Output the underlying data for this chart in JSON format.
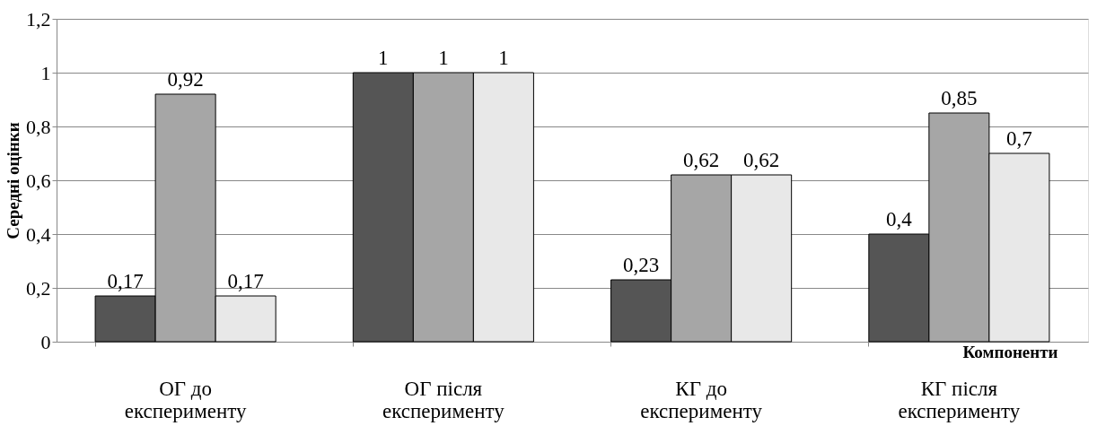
{
  "chart_data": {
    "type": "bar",
    "ylabel": "Середні оцінки",
    "xlabel": "Компоненти",
    "categories": [
      "ОГ до експерименту",
      "ОГ після експерименту",
      "КГ до експерименту",
      "КГ після експерименту"
    ],
    "series": [
      {
        "color": "#555555",
        "values": [
          0.17,
          1,
          0.23,
          0.4
        ],
        "value_labels": [
          "0,17",
          "1",
          "0,23",
          "0,4"
        ]
      },
      {
        "color": "#a6a6a6",
        "values": [
          0.92,
          1,
          0.62,
          0.85
        ],
        "value_labels": [
          "0,92",
          "1",
          "0,62",
          "0,85"
        ]
      },
      {
        "color": "#e8e8e8",
        "values": [
          0.17,
          1,
          0.62,
          0.7
        ],
        "value_labels": [
          "0,17",
          "1",
          "0,62",
          "0,7"
        ]
      }
    ],
    "ylim": [
      0,
      1.2
    ],
    "yticks": [
      0,
      {
        "value": 0.2,
        "label": "0,2"
      },
      {
        "value": 0.4,
        "label": "0,4"
      },
      {
        "value": 0.6,
        "label": "0,6"
      },
      {
        "value": 0.8,
        "label": "0,8"
      },
      1,
      {
        "value": 1.2,
        "label": "1,2"
      }
    ],
    "grid": "y"
  }
}
